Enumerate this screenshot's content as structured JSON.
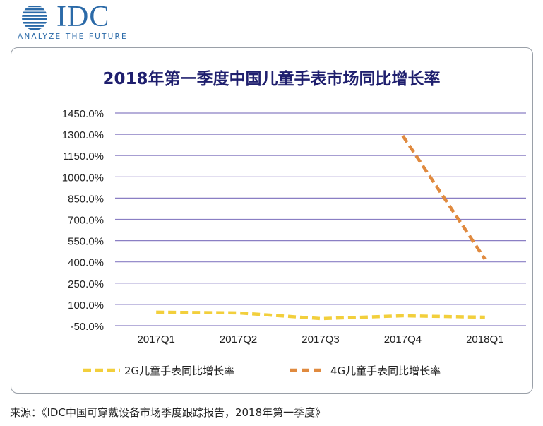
{
  "header": {
    "logo_text": "IDC",
    "tagline": "ANALYZE THE FUTURE",
    "brand_color": "#2b6aa8"
  },
  "title": "2018年第一季度中国儿童手表市场同比增长率",
  "source_note": "来源：《IDC中国可穿戴设备市场季度跟踪报告，2018年第一季度》",
  "colors": {
    "series_2g": "#f2cf3c",
    "series_4g": "#e08a3f",
    "grid": "#8a7fc4",
    "title": "#1f1f6e"
  },
  "chart_data": {
    "type": "line",
    "title": "2018年第一季度中国儿童手表市场同比增长率",
    "categories": [
      "2017Q1",
      "2017Q2",
      "2017Q3",
      "2017Q4",
      "2018Q1"
    ],
    "y_tick_labels": [
      "1450.0%",
      "1300.0%",
      "1150.0%",
      "1000.0%",
      "850.0%",
      "700.0%",
      "550.0%",
      "400.0%",
      "250.0%",
      "100.0%",
      "-50.0%"
    ],
    "y_ticks": [
      1450,
      1300,
      1150,
      1000,
      850,
      700,
      550,
      400,
      250,
      100,
      -50
    ],
    "ylim": [
      -50,
      1450
    ],
    "grid": true,
    "legend_position": "bottom",
    "series": [
      {
        "name": "2G儿童手表同比增长率",
        "values": [
          45,
          40,
          0,
          20,
          10
        ],
        "style": "dashed",
        "color": "#f2cf3c"
      },
      {
        "name": "4G儿童手表同比增长率",
        "values": [
          null,
          null,
          null,
          1290,
          420
        ],
        "style": "dashed",
        "color": "#e08a3f"
      }
    ]
  }
}
